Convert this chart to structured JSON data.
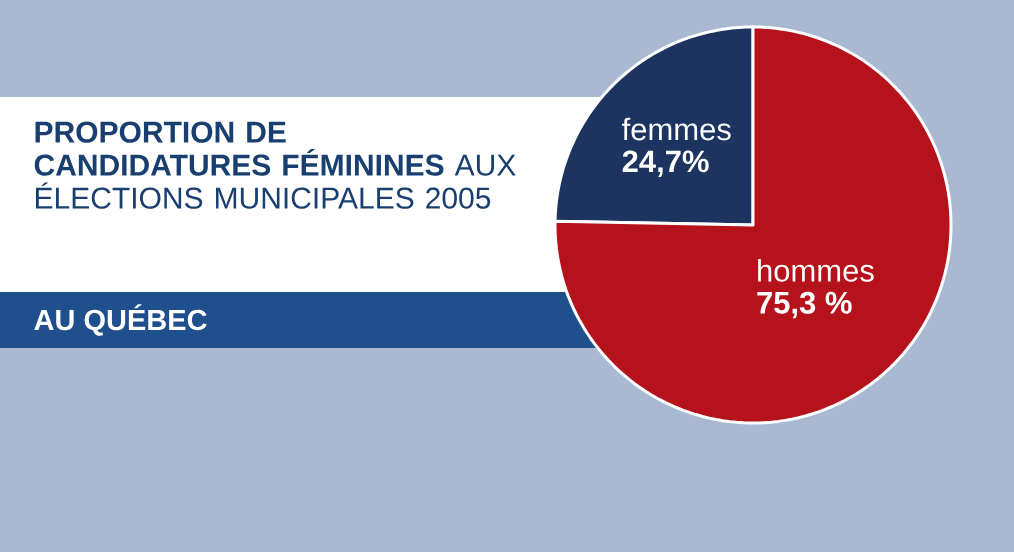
{
  "chart_data": {
    "type": "pie",
    "title": "**PROPORTION DE CANDIDATURES FÉMININES** AUX ÉLECTIONS MUNICIPALES 2005",
    "subtitle": "AU QUÉBEC",
    "categories": [
      "femmes",
      "hommes"
    ],
    "values": [
      24.7,
      75.3
    ],
    "value_labels": [
      "24,7%",
      "75,3 %"
    ],
    "colors": [
      "#1d3461",
      "#b5121b"
    ]
  }
}
